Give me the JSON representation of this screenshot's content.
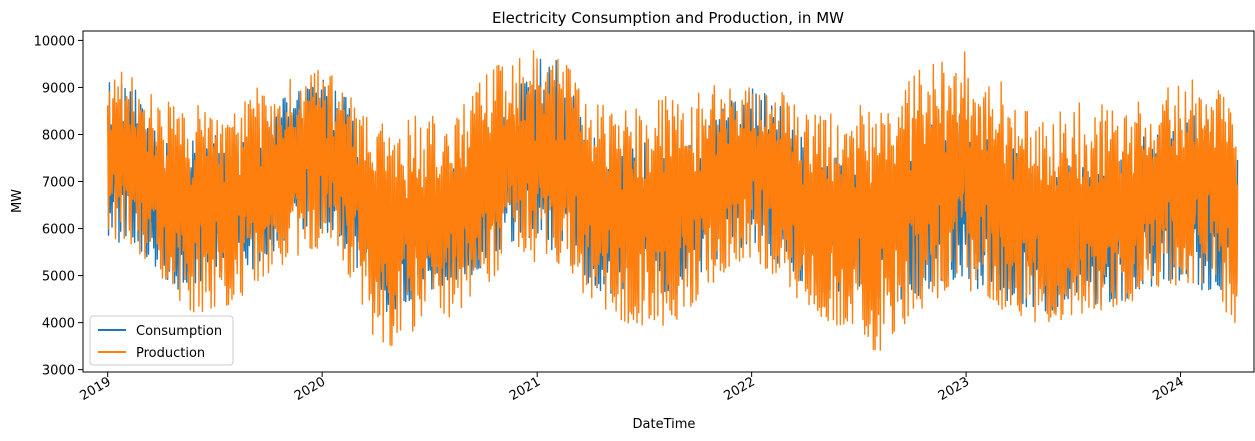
{
  "chart_data": {
    "type": "line",
    "title": "Electricity Consumption and Production, in MW",
    "xlabel": "DateTime",
    "ylabel": "MW",
    "x_range": [
      "2018-11-20",
      "2024-05-05"
    ],
    "ylim": [
      2950,
      10200
    ],
    "y_ticks": [
      3000,
      4000,
      5000,
      6000,
      7000,
      8000,
      9000,
      10000
    ],
    "x_ticks": [
      {
        "date": "2019-01-01",
        "label": "2019"
      },
      {
        "date": "2020-01-01",
        "label": "2020"
      },
      {
        "date": "2021-01-01",
        "label": "2021"
      },
      {
        "date": "2022-01-01",
        "label": "2022"
      },
      {
        "date": "2023-01-01",
        "label": "2023"
      },
      {
        "date": "2024-01-01",
        "label": "2024"
      }
    ],
    "legend": {
      "placement": "lower-left"
    },
    "series": [
      {
        "name": "Consumption",
        "color": "#1f77b4",
        "envelope": {
          "dates": [
            "2019-01-01",
            "2019-02-01",
            "2019-03-01",
            "2019-04-01",
            "2019-05-01",
            "2019-06-01",
            "2019-07-01",
            "2019-08-01",
            "2019-09-01",
            "2019-10-01",
            "2019-11-01",
            "2019-12-01",
            "2020-01-01",
            "2020-02-01",
            "2020-03-01",
            "2020-04-01",
            "2020-05-01",
            "2020-06-01",
            "2020-07-01",
            "2020-08-01",
            "2020-09-01",
            "2020-10-01",
            "2020-11-01",
            "2020-12-01",
            "2021-01-01",
            "2021-02-01",
            "2021-03-01",
            "2021-04-01",
            "2021-05-01",
            "2021-06-01",
            "2021-07-01",
            "2021-08-01",
            "2021-09-01",
            "2021-10-01",
            "2021-11-01",
            "2021-12-01",
            "2022-01-01",
            "2022-02-01",
            "2022-03-01",
            "2022-04-01",
            "2022-05-01",
            "2022-06-01",
            "2022-07-01",
            "2022-08-01",
            "2022-09-01",
            "2022-10-01",
            "2022-11-01",
            "2022-12-01",
            "2023-01-01",
            "2023-02-01",
            "2023-03-01",
            "2023-04-01",
            "2023-05-01",
            "2023-06-01",
            "2023-07-01",
            "2023-08-01",
            "2023-09-01",
            "2023-10-01",
            "2023-11-01",
            "2023-12-01",
            "2024-01-01",
            "2024-02-01",
            "2024-03-01",
            "2024-04-01"
          ],
          "low": [
            5300,
            5800,
            5500,
            5000,
            4700,
            4800,
            5000,
            4900,
            5100,
            5400,
            5800,
            6000,
            6000,
            5700,
            5000,
            4300,
            4200,
            4500,
            4700,
            4600,
            4900,
            5200,
            5600,
            5800,
            5600,
            5400,
            5200,
            4800,
            4500,
            4600,
            4700,
            4500,
            4600,
            4900,
            5300,
            5500,
            5600,
            5400,
            5100,
            4800,
            4600,
            4500,
            4700,
            4500,
            4500,
            4500,
            4700,
            4900,
            4800,
            4600,
            4500,
            4400,
            4200,
            4200,
            4500,
            4300,
            4400,
            4500,
            4700,
            4900,
            4900,
            4700,
            4700,
            4700
          ],
          "high": [
            9450,
            9300,
            8700,
            8000,
            7700,
            7900,
            8000,
            7800,
            7900,
            8400,
            8900,
            9350,
            9300,
            9000,
            8400,
            7000,
            6700,
            7000,
            7200,
            7200,
            7400,
            7900,
            8500,
            9000,
            9600,
            9600,
            9100,
            8000,
            7800,
            7800,
            7900,
            7600,
            7700,
            8100,
            8600,
            9000,
            9200,
            9000,
            8600,
            8000,
            7500,
            7500,
            7700,
            7500,
            7700,
            8000,
            8300,
            8600,
            8300,
            8200,
            8000,
            7600,
            7100,
            7300,
            7600,
            7400,
            7500,
            7900,
            8000,
            8300,
            8500,
            8500,
            8200,
            7600
          ]
        }
      },
      {
        "name": "Production",
        "color": "#ff7f0e",
        "envelope": {
          "dates": [
            "2019-01-01",
            "2019-02-01",
            "2019-03-01",
            "2019-04-01",
            "2019-05-01",
            "2019-06-01",
            "2019-07-01",
            "2019-08-01",
            "2019-09-01",
            "2019-10-01",
            "2019-11-01",
            "2019-12-01",
            "2020-01-01",
            "2020-02-01",
            "2020-03-01",
            "2020-04-01",
            "2020-05-01",
            "2020-06-01",
            "2020-07-01",
            "2020-08-01",
            "2020-09-01",
            "2020-10-01",
            "2020-11-01",
            "2020-12-01",
            "2021-01-01",
            "2021-02-01",
            "2021-03-01",
            "2021-04-01",
            "2021-05-01",
            "2021-06-01",
            "2021-07-01",
            "2021-08-01",
            "2021-09-01",
            "2021-10-01",
            "2021-11-01",
            "2021-12-01",
            "2022-01-01",
            "2022-02-01",
            "2022-03-01",
            "2022-04-01",
            "2022-05-01",
            "2022-06-01",
            "2022-07-01",
            "2022-08-01",
            "2022-09-01",
            "2022-10-01",
            "2022-11-01",
            "2022-12-01",
            "2023-01-01",
            "2023-02-01",
            "2023-03-01",
            "2023-04-01",
            "2023-05-01",
            "2023-06-01",
            "2023-07-01",
            "2023-08-01",
            "2023-09-01",
            "2023-10-01",
            "2023-11-01",
            "2023-12-01",
            "2024-01-01",
            "2024-02-01",
            "2024-03-01",
            "2024-04-01"
          ],
          "low": [
            5600,
            5800,
            5400,
            4800,
            4400,
            4200,
            4300,
            4400,
            4700,
            5000,
            5300,
            5500,
            5600,
            5400,
            4600,
            3500,
            3500,
            3800,
            4000,
            4100,
            4300,
            4700,
            5100,
            5300,
            5300,
            5300,
            5000,
            4400,
            4100,
            4000,
            3900,
            3900,
            4100,
            4500,
            4900,
            5200,
            5300,
            5100,
            4700,
            4400,
            4100,
            3900,
            4000,
            3300,
            3800,
            4100,
            4400,
            4700,
            4700,
            4500,
            4300,
            4100,
            4000,
            4000,
            4100,
            4200,
            4300,
            4400,
            4600,
            4800,
            4800,
            4800,
            4900,
            3700
          ],
          "high": [
            9000,
            9550,
            9200,
            8800,
            8600,
            8900,
            8500,
            8400,
            9200,
            9000,
            9100,
            9500,
            9400,
            9200,
            8700,
            8800,
            7800,
            8400,
            8500,
            8400,
            8700,
            9200,
            9600,
            9700,
            9800,
            9700,
            9400,
            8900,
            8700,
            8600,
            8500,
            8800,
            8900,
            9100,
            9200,
            9100,
            9200,
            9000,
            8900,
            8500,
            8500,
            8400,
            8600,
            8700,
            8700,
            9300,
            9500,
            9700,
            9900,
            9400,
            9200,
            8700,
            8300,
            8800,
            8600,
            8800,
            8700,
            8600,
            8800,
            9000,
            9100,
            9200,
            9200,
            8400
          ]
        }
      }
    ]
  }
}
